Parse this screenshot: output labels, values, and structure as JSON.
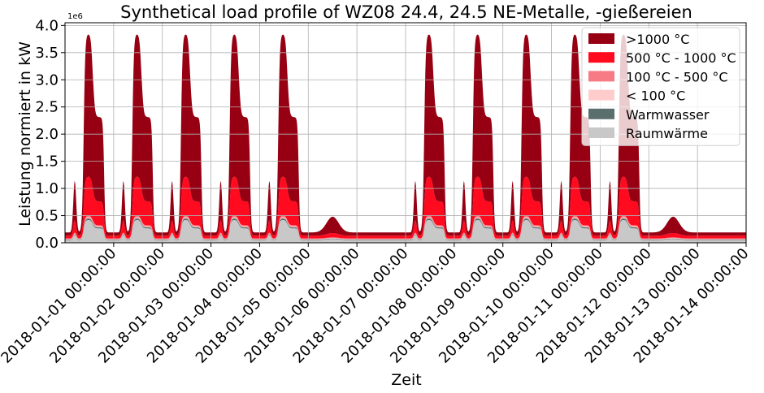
{
  "chart_data": {
    "type": "area",
    "stacked": true,
    "title": "Synthetical load profile of WZ08 24.4, 24.5 NE-Metalle, -gießereien",
    "xlabel": "Zeit",
    "ylabel": "Leistung normiert in kW",
    "y_scale_label": "1e6",
    "ylim": [
      0,
      4.05
    ],
    "yticks": [
      0.0,
      0.5,
      1.0,
      1.5,
      2.0,
      2.5,
      3.0,
      3.5,
      4.0
    ],
    "ytick_labels": [
      "0.0",
      "0.5",
      "1.0",
      "1.5",
      "2.0",
      "2.5",
      "3.0",
      "3.5",
      "4.0"
    ],
    "xlim": [
      "2017-12-31 00:00:00",
      "2018-01-14 00:00:00"
    ],
    "xticks": [
      "2018-01-01 00:00:00",
      "2018-01-02 00:00:00",
      "2018-01-03 00:00:00",
      "2018-01-04 00:00:00",
      "2018-01-05 00:00:00",
      "2018-01-06 00:00:00",
      "2018-01-07 00:00:00",
      "2018-01-08 00:00:00",
      "2018-01-09 00:00:00",
      "2018-01-10 00:00:00",
      "2018-01-11 00:00:00",
      "2018-01-12 00:00:00",
      "2018-01-13 00:00:00",
      "2018-01-14 00:00:00"
    ],
    "grid": true,
    "legend_position": "top-right",
    "day_types": [
      "weekday",
      "weekday",
      "weekday",
      "weekday",
      "weekday",
      "saturday",
      "sunday",
      "weekday",
      "weekday",
      "weekday",
      "weekday",
      "weekday",
      "saturday",
      "sunday"
    ],
    "series": [
      {
        "name": "Raumwärme",
        "color": "#c8c8c8",
        "weekday_peak": 0.42,
        "weekend_peak": 0.07,
        "base": 0.05
      },
      {
        "name": "Warmwasser",
        "color": "#5a6e6e",
        "weekday_peak": 0.03,
        "weekend_peak": 0.01,
        "base": 0.01
      },
      {
        "name": "< 100 °C",
        "color": "#ffcccc",
        "weekday_peak": 0.02,
        "weekend_peak": 0.01,
        "base": 0.01
      },
      {
        "name": "100 °C - 500 °C",
        "color": "#f77b84",
        "weekday_peak": 0.03,
        "weekend_peak": 0.01,
        "base": 0.01
      },
      {
        "name": "500 °C - 1000 °C",
        "color": "#ff0a1e",
        "weekday_peak": 0.72,
        "weekend_peak": 0.08,
        "base": 0.05
      },
      {
        "name": ">1000 °C",
        "color": "#960012",
        "weekday_peak": 2.63,
        "weekend_peak": 0.3,
        "base": 0.06
      }
    ],
    "weekday_total_peak": 3.85,
    "weekend_total_peak": 0.48,
    "night_base_total": 0.19
  }
}
